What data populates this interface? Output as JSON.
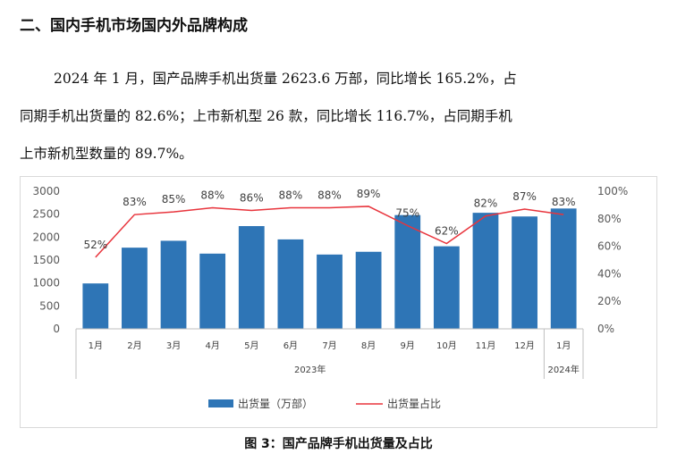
{
  "heading": "二、国内手机市场国内外品牌构成",
  "paragraph_lines": [
    "2024 年 1 月，国产品牌手机出货量 2623.6 万部，同比增长 165.2%，占",
    "同期手机出货量的 82.6%；上市新机型 26 款，同比增长 116.7%，占同期手机",
    "上市新机型数量的 89.7%。"
  ],
  "caption": "图 3：国产品牌手机出货量及占比",
  "chart_data": {
    "type": "bar",
    "categories": [
      "1月",
      "2月",
      "3月",
      "4月",
      "5月",
      "6月",
      "7月",
      "8月",
      "9月",
      "10月",
      "11月",
      "12月",
      "1月"
    ],
    "groups": [
      {
        "label": "2023年",
        "range": [
          0,
          11
        ]
      },
      {
        "label": "2024年",
        "range": [
          12,
          12
        ]
      }
    ],
    "series": [
      {
        "name": "出货量（万部）",
        "type": "bar",
        "axis": "left",
        "values": [
          990,
          1770,
          1920,
          1640,
          2240,
          1950,
          1620,
          1680,
          2480,
          1800,
          2530,
          2450,
          2623.6
        ]
      },
      {
        "name": "出货量占比",
        "type": "line",
        "axis": "right",
        "values": [
          52,
          83,
          85,
          88,
          86,
          88,
          88,
          89,
          75,
          62,
          82,
          87,
          83
        ],
        "labels": [
          "52%",
          "83%",
          "85%",
          "88%",
          "86%",
          "88%",
          "88%",
          "89%",
          "75%",
          "62%",
          "82%",
          "87%",
          "83%"
        ]
      }
    ],
    "left_axis": {
      "min": 0,
      "max": 3000,
      "ticks": [
        "0",
        "500",
        "1000",
        "1500",
        "2000",
        "2500",
        "3000"
      ]
    },
    "right_axis": {
      "min": 0,
      "max": 100,
      "ticks": [
        "0%",
        "20%",
        "40%",
        "60%",
        "80%",
        "100%"
      ]
    },
    "legend_position": "bottom",
    "grid": false,
    "colors": {
      "bar": "#2e75b6",
      "line": "#e8343c"
    }
  }
}
